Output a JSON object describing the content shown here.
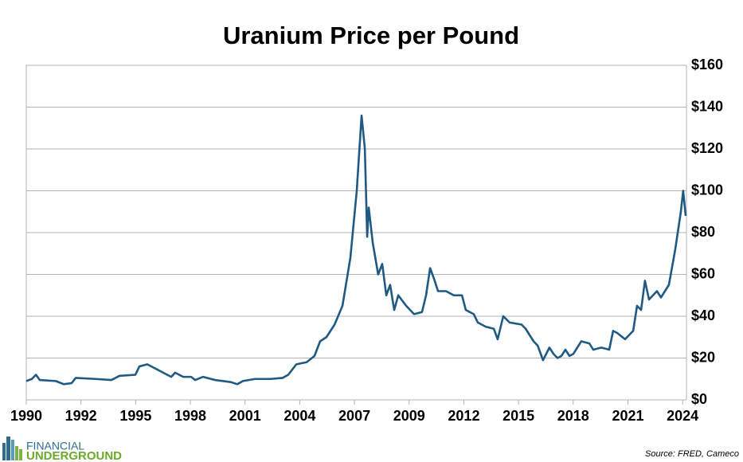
{
  "chart_data": {
    "type": "line",
    "title": "Uranium Price per Pound",
    "source": "Source: FRED, Cameco",
    "logo": [
      "FINANCIAL",
      "UNDERGROUND"
    ],
    "series": [
      {
        "name": "Uranium price",
        "color": "#1f5a85",
        "x": [
          1990.0,
          1990.29,
          1990.5,
          1990.7,
          1991.53,
          1991.94,
          1992.35,
          1992.56,
          1993.59,
          1994.41,
          1994.83,
          1995.65,
          1995.86,
          1996.27,
          1996.89,
          1997.3,
          1997.51,
          1997.71,
          1998.13,
          1998.54,
          1998.75,
          1999.16,
          1999.78,
          2000.6,
          2000.93,
          2001.22,
          2001.84,
          2002.67,
          2003.28,
          2003.57,
          2003.99,
          2004.52,
          2004.93,
          2005.22,
          2005.55,
          2005.97,
          2006.38,
          2006.79,
          2007.12,
          2007.37,
          2007.54,
          2007.66,
          2007.74,
          2007.95,
          2008.23,
          2008.44,
          2008.65,
          2008.85,
          2009.06,
          2009.27,
          2009.68,
          2010.09,
          2010.5,
          2010.71,
          2010.92,
          2011.12,
          2011.33,
          2011.74,
          2012.15,
          2012.57,
          2012.77,
          2013.18,
          2013.39,
          2013.8,
          2014.22,
          2014.42,
          2014.71,
          2015.04,
          2015.66,
          2015.87,
          2016.28,
          2016.49,
          2016.77,
          2017.1,
          2017.31,
          2017.52,
          2017.72,
          2017.93,
          2018.14,
          2018.34,
          2018.75,
          2019.17,
          2019.37,
          2019.79,
          2020.2,
          2020.4,
          2020.61,
          2021.02,
          2021.23,
          2021.44,
          2021.64,
          2021.85,
          2022.05,
          2022.26,
          2022.67,
          2022.88,
          2023.29,
          2023.62,
          2023.91,
          2024.03,
          2024.16
        ],
        "values": [
          9,
          10,
          12,
          9.5,
          9,
          7.5,
          8,
          10.5,
          10,
          9.5,
          11.5,
          12,
          16,
          17,
          14,
          12,
          11,
          13,
          11,
          11,
          9.5,
          11,
          9.5,
          8.5,
          7.5,
          9,
          10,
          10,
          10.5,
          12,
          17,
          18,
          21,
          28,
          30,
          36,
          45,
          68,
          100,
          136,
          120,
          78,
          92,
          75,
          60,
          65,
          50,
          55,
          43,
          50,
          45,
          41,
          42,
          50,
          63,
          58,
          52,
          52,
          50,
          50,
          43,
          41,
          37,
          35,
          34,
          29,
          40,
          37,
          36,
          34,
          28,
          26,
          19,
          25,
          22,
          20,
          21,
          24,
          21,
          22,
          28,
          27,
          24,
          25,
          24,
          33,
          32,
          29,
          31,
          33,
          45,
          43,
          57,
          48,
          52,
          49,
          55,
          72,
          90,
          100,
          88
        ]
      }
    ],
    "xlim": [
      1990,
      2024.2
    ],
    "xticks": [
      {
        "value": 1990,
        "label": "1990"
      },
      {
        "value": 1992.833,
        "label": "1992"
      },
      {
        "value": 1995.667,
        "label": "1995"
      },
      {
        "value": 1998.5,
        "label": "1998"
      },
      {
        "value": 2001.333,
        "label": "2001"
      },
      {
        "value": 2004.167,
        "label": "2004"
      },
      {
        "value": 2007,
        "label": "2007"
      },
      {
        "value": 2009.833,
        "label": "2009"
      },
      {
        "value": 2012.667,
        "label": "2012"
      },
      {
        "value": 2015.5,
        "label": "2015"
      },
      {
        "value": 2018.333,
        "label": "2018"
      },
      {
        "value": 2021.167,
        "label": "2021"
      },
      {
        "value": 2024,
        "label": "2024"
      }
    ],
    "ylim": [
      0,
      160
    ],
    "yticks": [
      {
        "value": 0,
        "label": "$0"
      },
      {
        "value": 20,
        "label": "$20"
      },
      {
        "value": 40,
        "label": "$40"
      },
      {
        "value": 60,
        "label": "$60"
      },
      {
        "value": 80,
        "label": "$80"
      },
      {
        "value": 100,
        "label": "$100"
      },
      {
        "value": 120,
        "label": "$120"
      },
      {
        "value": 140,
        "label": "$140"
      },
      {
        "value": 160,
        "label": "$160"
      }
    ],
    "grid": true
  }
}
